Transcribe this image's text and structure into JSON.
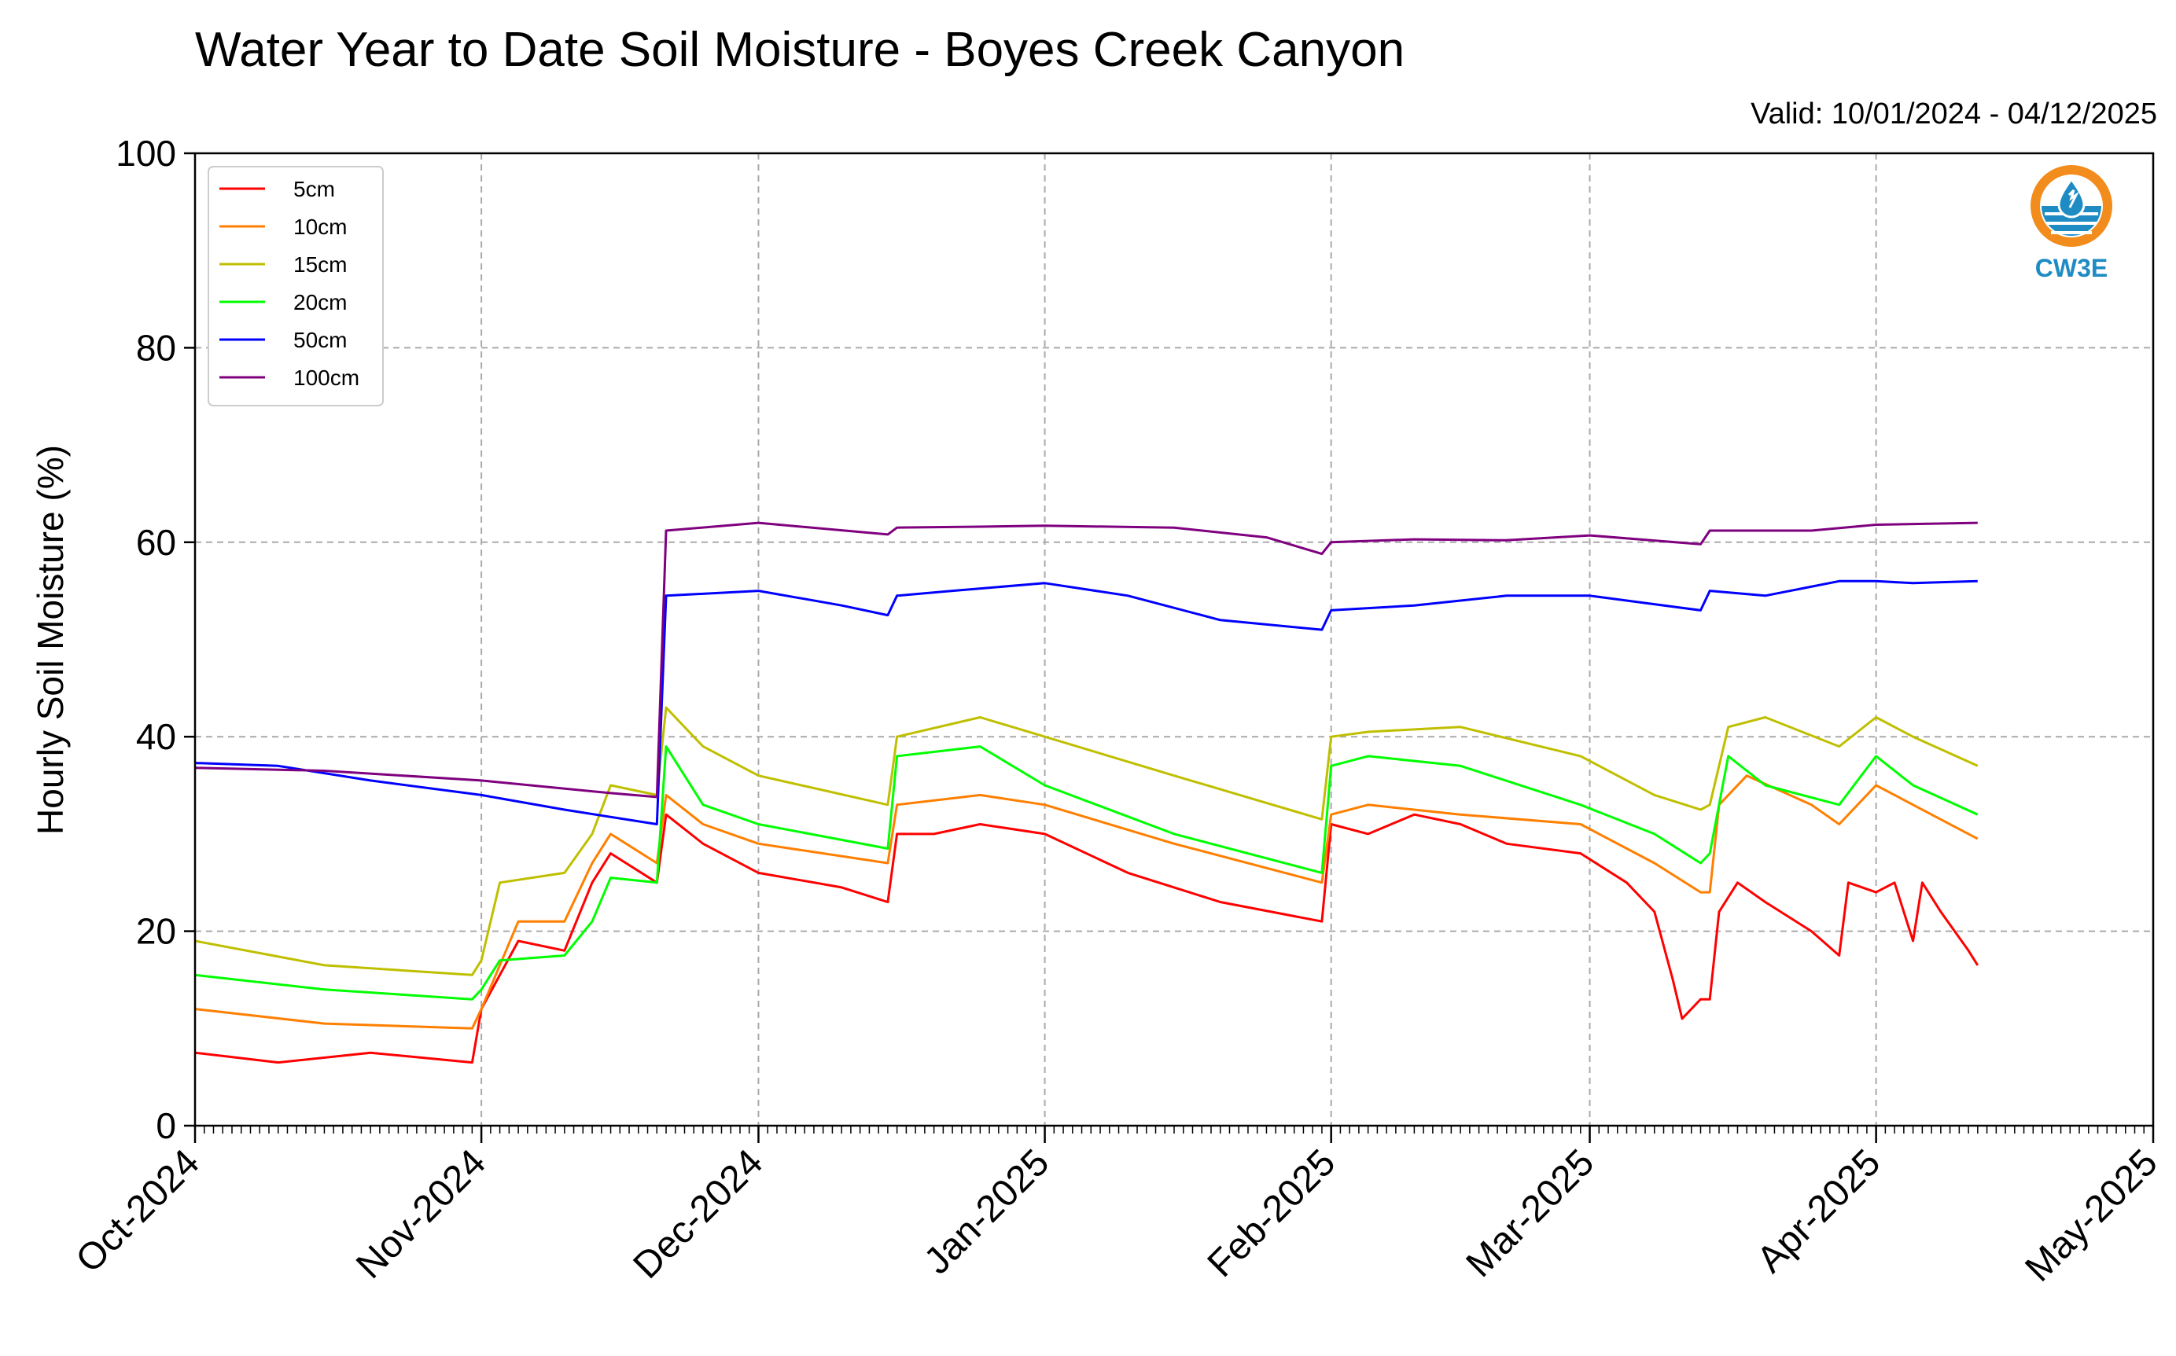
{
  "title": "Water Year to Date Soil Moisture - Boyes Creek Canyon",
  "valid": "Valid: 10/01/2024 - 04/12/2025",
  "logo": {
    "text": "CW3E",
    "icon": "water-drop-icon"
  },
  "chart_data": {
    "type": "line",
    "title": "Water Year to Date Soil Moisture - Boyes Creek Canyon",
    "xlabel": "",
    "ylabel": "Hourly Soil Moisture (%)",
    "ylim": [
      0,
      100
    ],
    "yticks": [
      0,
      20,
      40,
      60,
      80,
      100
    ],
    "xlim": [
      "2024-10-01",
      "2025-05-01"
    ],
    "xtick_labels": [
      "Oct-2024",
      "Nov-2024",
      "Dec-2024",
      "Jan-2025",
      "Feb-2025",
      "Mar-2025",
      "Apr-2025",
      "May-2025"
    ],
    "grid": true,
    "legend_position": "top-left",
    "series": [
      {
        "name": "5cm",
        "color": "#ff0000",
        "x": [
          "2024-10-01",
          "2024-10-10",
          "2024-10-20",
          "2024-10-31",
          "2024-11-01",
          "2024-11-05",
          "2024-11-10",
          "2024-11-13",
          "2024-11-15",
          "2024-11-20",
          "2024-11-21",
          "2024-11-25",
          "2024-12-01",
          "2024-12-10",
          "2024-12-15",
          "2024-12-16",
          "2024-12-20",
          "2024-12-25",
          "2025-01-01",
          "2025-01-10",
          "2025-01-20",
          "2025-01-31",
          "2025-02-01",
          "2025-02-05",
          "2025-02-10",
          "2025-02-15",
          "2025-02-20",
          "2025-02-28",
          "2025-03-05",
          "2025-03-08",
          "2025-03-10",
          "2025-03-11",
          "2025-03-13",
          "2025-03-14",
          "2025-03-15",
          "2025-03-17",
          "2025-03-20",
          "2025-03-25",
          "2025-03-28",
          "2025-03-29",
          "2025-04-01",
          "2025-04-03",
          "2025-04-05",
          "2025-04-06",
          "2025-04-08",
          "2025-04-11",
          "2025-04-12"
        ],
        "y": [
          7.5,
          6.5,
          7.5,
          6.5,
          12,
          19,
          18,
          25,
          28,
          25,
          32,
          29,
          26,
          24.5,
          23,
          30,
          30,
          31,
          30,
          26,
          23,
          21,
          31,
          30,
          32,
          31,
          29,
          28,
          25,
          22,
          15,
          11,
          13,
          13,
          22,
          25,
          23,
          20,
          17.5,
          25,
          24,
          25,
          19,
          25,
          22,
          18,
          16.5
        ]
      },
      {
        "name": "10cm",
        "color": "#ff7f00",
        "x": [
          "2024-10-01",
          "2024-10-15",
          "2024-10-31",
          "2024-11-01",
          "2024-11-05",
          "2024-11-10",
          "2024-11-13",
          "2024-11-15",
          "2024-11-20",
          "2024-11-21",
          "2024-11-25",
          "2024-12-01",
          "2024-12-15",
          "2024-12-16",
          "2024-12-25",
          "2025-01-01",
          "2025-01-15",
          "2025-01-31",
          "2025-02-01",
          "2025-02-05",
          "2025-02-15",
          "2025-02-28",
          "2025-03-08",
          "2025-03-13",
          "2025-03-14",
          "2025-03-15",
          "2025-03-18",
          "2025-03-25",
          "2025-03-28",
          "2025-04-01",
          "2025-04-05",
          "2025-04-12"
        ],
        "y": [
          12,
          10.5,
          10,
          12,
          21,
          21,
          27,
          30,
          27,
          34,
          31,
          29,
          27,
          33,
          34,
          33,
          29,
          25,
          32,
          33,
          32,
          31,
          27,
          24,
          24,
          33,
          36,
          33,
          31,
          35,
          33,
          29.5
        ]
      },
      {
        "name": "15cm",
        "color": "#bfbf00",
        "x": [
          "2024-10-01",
          "2024-10-15",
          "2024-10-31",
          "2024-11-01",
          "2024-11-03",
          "2024-11-10",
          "2024-11-13",
          "2024-11-15",
          "2024-11-20",
          "2024-11-21",
          "2024-11-25",
          "2024-12-01",
          "2024-12-15",
          "2024-12-16",
          "2024-12-25",
          "2025-01-01",
          "2025-01-15",
          "2025-01-31",
          "2025-02-01",
          "2025-02-05",
          "2025-02-15",
          "2025-02-28",
          "2025-03-08",
          "2025-03-13",
          "2025-03-14",
          "2025-03-16",
          "2025-03-20",
          "2025-03-28",
          "2025-04-01",
          "2025-04-05",
          "2025-04-12"
        ],
        "y": [
          19,
          16.5,
          15.5,
          17,
          25,
          26,
          30,
          35,
          34,
          43,
          39,
          36,
          33,
          40,
          42,
          40,
          36,
          31.5,
          40,
          40.5,
          41,
          38,
          34,
          32.5,
          33,
          41,
          42,
          39,
          42,
          40,
          37
        ]
      },
      {
        "name": "20cm",
        "color": "#00ff00",
        "x": [
          "2024-10-01",
          "2024-10-15",
          "2024-10-31",
          "2024-11-01",
          "2024-11-03",
          "2024-11-10",
          "2024-11-13",
          "2024-11-15",
          "2024-11-20",
          "2024-11-21",
          "2024-11-25",
          "2024-12-01",
          "2024-12-15",
          "2024-12-16",
          "2024-12-25",
          "2025-01-01",
          "2025-01-15",
          "2025-01-31",
          "2025-02-01",
          "2025-02-05",
          "2025-02-15",
          "2025-02-28",
          "2025-03-08",
          "2025-03-13",
          "2025-03-14",
          "2025-03-16",
          "2025-03-20",
          "2025-03-28",
          "2025-04-01",
          "2025-04-05",
          "2025-04-12"
        ],
        "y": [
          15.5,
          14,
          13,
          14,
          17,
          17.5,
          21,
          25.5,
          25,
          39,
          33,
          31,
          28.5,
          38,
          39,
          35,
          30,
          26,
          37,
          38,
          37,
          33,
          30,
          27,
          28,
          38,
          35,
          33,
          38,
          35,
          32
        ]
      },
      {
        "name": "50cm",
        "color": "#0000ff",
        "x": [
          "2024-10-01",
          "2024-10-10",
          "2024-10-20",
          "2024-11-01",
          "2024-11-10",
          "2024-11-20",
          "2024-11-21",
          "2024-12-01",
          "2024-12-10",
          "2024-12-15",
          "2024-12-16",
          "2024-12-22",
          "2025-01-01",
          "2025-01-10",
          "2025-01-20",
          "2025-01-31",
          "2025-02-01",
          "2025-02-10",
          "2025-02-20",
          "2025-03-01",
          "2025-03-13",
          "2025-03-14",
          "2025-03-20",
          "2025-03-28",
          "2025-04-01",
          "2025-04-05",
          "2025-04-12"
        ],
        "y": [
          37.3,
          37,
          35.5,
          34,
          32.5,
          31,
          54.5,
          55,
          53.5,
          52.5,
          54.5,
          55,
          55.8,
          54.5,
          52,
          51,
          53,
          53.5,
          54.5,
          54.5,
          53,
          55,
          54.5,
          56,
          56,
          55.8,
          56
        ]
      },
      {
        "name": "100cm",
        "color": "#7f007f",
        "x": [
          "2024-10-01",
          "2024-10-15",
          "2024-11-01",
          "2024-11-15",
          "2024-11-20",
          "2024-11-21",
          "2024-12-01",
          "2024-12-15",
          "2024-12-16",
          "2024-12-25",
          "2025-01-01",
          "2025-01-15",
          "2025-01-25",
          "2025-01-31",
          "2025-02-01",
          "2025-02-10",
          "2025-02-20",
          "2025-03-01",
          "2025-03-13",
          "2025-03-14",
          "2025-03-25",
          "2025-04-01",
          "2025-04-12"
        ],
        "y": [
          36.8,
          36.5,
          35.5,
          34.2,
          33.8,
          61.2,
          62,
          60.8,
          61.5,
          61.6,
          61.7,
          61.5,
          60.5,
          58.8,
          60,
          60.3,
          60.2,
          60.7,
          59.8,
          61.2,
          61.2,
          61.8,
          62
        ]
      }
    ]
  }
}
